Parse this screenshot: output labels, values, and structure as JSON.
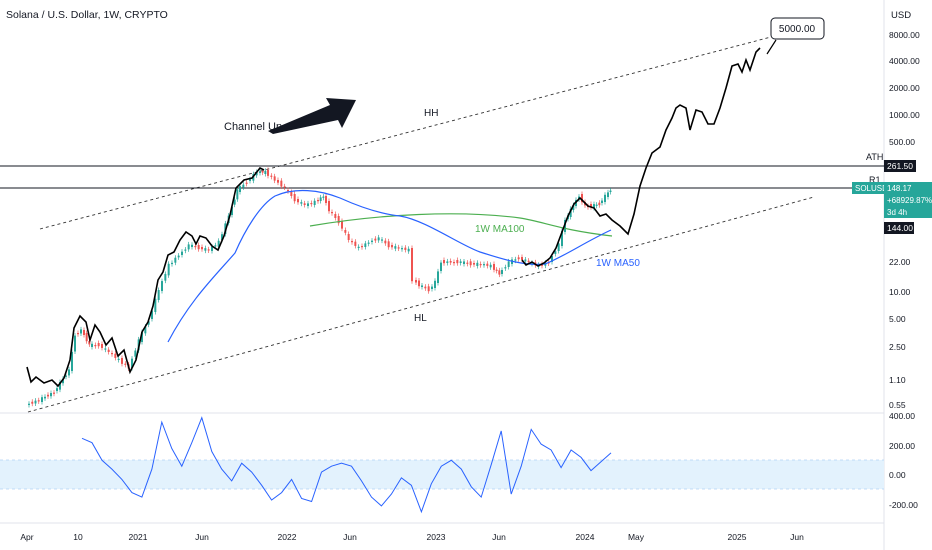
{
  "header": {
    "title": "Solana / U.S. Dollar, 1W, CRYPTO",
    "currency": "USD"
  },
  "colors": {
    "candle_up": "#26a69a",
    "candle_down": "#ef5350",
    "ma100": "#4caf50",
    "ma50": "#2962ff",
    "projection": "#000000",
    "price_badge": "#26a69a",
    "cci_line": "#2962ff",
    "cci_band": "#e3f2fd"
  },
  "chart_data": [
    {
      "type": "line",
      "scale": "log",
      "grid": false,
      "y_ticks": [
        "8000.00",
        "4000.00",
        "2000.00",
        "1000.00",
        "500.00",
        "22.00",
        "10.00",
        "5.00",
        "2.50",
        "1.10",
        "0.55"
      ],
      "x_ticks": [
        "Apr",
        "10",
        "2021",
        "Jun",
        "2022",
        "Jun",
        "2023",
        "Jun",
        "2024",
        "May",
        "2025",
        "Jun"
      ],
      "price_labels": {
        "ath": "261.50",
        "current_symbol": "SOLUSD",
        "current_price": "148.17",
        "current_change": "+68929.87%",
        "current_timer": "3d 4h",
        "hl_level": "144.00"
      },
      "series": [
        {
          "name": "1W MA100",
          "points": [
            [
              2021.75,
              60
            ],
            [
              2022.2,
              80
            ],
            [
              2022.7,
              82
            ],
            [
              2023.2,
              75
            ],
            [
              2023.6,
              60
            ],
            [
              2023.9,
              52
            ]
          ]
        },
        {
          "name": "1W MA50",
          "points": [
            [
              2020.95,
              0.9
            ],
            [
              2021.3,
              9
            ],
            [
              2021.8,
              90
            ],
            [
              2022.2,
              55
            ],
            [
              2022.6,
              25
            ],
            [
              2022.9,
              18
            ],
            [
              2023.3,
              15
            ],
            [
              2023.7,
              22
            ],
            [
              2024.0,
              50
            ],
            [
              2024.15,
              62
            ]
          ]
        },
        {
          "name": "Projection",
          "points": [
            [
              2020.3,
              1.5
            ],
            [
              2020.75,
              7
            ],
            [
              2021.1,
              12
            ],
            [
              2021.5,
              200
            ],
            [
              2021.85,
              240
            ],
            [
              2022.2,
              120
            ],
            [
              2022.6,
              30
            ],
            [
              2022.9,
              12
            ],
            [
              2023.3,
              20
            ],
            [
              2023.6,
              25
            ],
            [
              2023.9,
              160
            ],
            [
              2024.1,
              60
            ],
            [
              2024.4,
              1000
            ],
            [
              2024.7,
              1100
            ],
            [
              2024.95,
              4000
            ],
            [
              2025.15,
              4800
            ]
          ]
        }
      ],
      "annotations": [
        "Channel Up",
        "HH",
        "HL",
        "ATH",
        "R1",
        "5000.00",
        "1W MA100",
        "1W MA50"
      ]
    },
    {
      "type": "line",
      "grid": false,
      "y_ticks": [
        "400.00",
        "200.00",
        "0.00",
        "-200.00"
      ],
      "band": [
        -100,
        100
      ],
      "series": [
        {
          "name": "CCI",
          "values": [
            250,
            220,
            100,
            40,
            -30,
            -120,
            -150,
            40,
            360,
            180,
            60,
            220,
            390,
            160,
            40,
            -40,
            80,
            20,
            -70,
            -170,
            -120,
            -30,
            -160,
            -180,
            20,
            60,
            80,
            60,
            -40,
            -150,
            -210,
            -130,
            -20,
            -70,
            -250,
            -60,
            60,
            100,
            40,
            -80,
            -150,
            70,
            300,
            -130,
            60,
            310,
            210,
            170,
            50,
            170,
            120,
            30,
            90,
            150
          ]
        }
      ]
    }
  ]
}
